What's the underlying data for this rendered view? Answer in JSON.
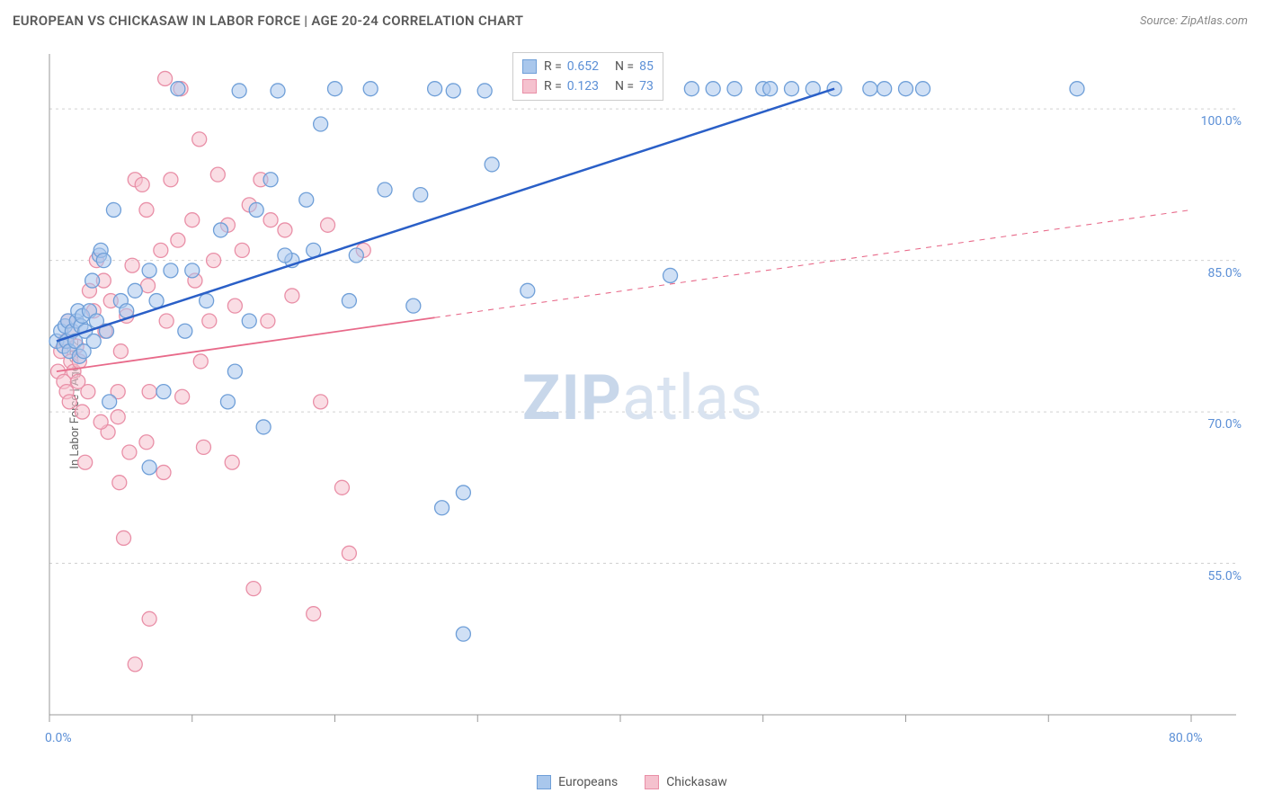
{
  "title": "EUROPEAN VS CHICKASAW IN LABOR FORCE | AGE 20-24 CORRELATION CHART",
  "source": "Source: ZipAtlas.com",
  "ylabel": "In Labor Force | Age 20-24",
  "watermark_bold": "ZIP",
  "watermark_light": "atlas",
  "chart": {
    "type": "scatter",
    "xlim": [
      0,
      80
    ],
    "ylim": [
      40,
      105
    ],
    "xticks": [
      0,
      20,
      40,
      60,
      80
    ],
    "xtick_labels": [
      "0.0%",
      "",
      "",
      "",
      "80.0%"
    ],
    "xtick_minor": [
      10,
      30,
      50,
      70
    ],
    "yticks": [
      55,
      70,
      85,
      100
    ],
    "ytick_labels": [
      "55.0%",
      "70.0%",
      "85.0%",
      "100.0%"
    ],
    "grid_color": "#d0d0d0",
    "axis_color": "#999999",
    "background_color": "#ffffff",
    "series": [
      {
        "name": "Europeans",
        "color_fill": "#a9c7ec",
        "color_stroke": "#6f9fd8",
        "line_color": "#2a5fc7",
        "R": "0.652",
        "N": "85",
        "marker_radius": 8,
        "fill_opacity": 0.55,
        "line": {
          "x1": 0.5,
          "y1": 77,
          "x2": 55,
          "y2": 102,
          "solid_until_x": 55,
          "width": 2.5
        },
        "points": [
          [
            0.5,
            77
          ],
          [
            0.8,
            78
          ],
          [
            1.0,
            76.5
          ],
          [
            1.1,
            78.5
          ],
          [
            1.2,
            77
          ],
          [
            1.3,
            79
          ],
          [
            1.4,
            76
          ],
          [
            1.6,
            78
          ],
          [
            1.8,
            77
          ],
          [
            1.9,
            79
          ],
          [
            2.0,
            80
          ],
          [
            2.1,
            75.5
          ],
          [
            2.2,
            78.5
          ],
          [
            2.3,
            79.5
          ],
          [
            2.4,
            76
          ],
          [
            2.5,
            78
          ],
          [
            2.8,
            80
          ],
          [
            3.0,
            83
          ],
          [
            3.1,
            77
          ],
          [
            3.3,
            79
          ],
          [
            3.5,
            85.5
          ],
          [
            3.6,
            86
          ],
          [
            3.8,
            85
          ],
          [
            4.0,
            78
          ],
          [
            4.2,
            71
          ],
          [
            4.5,
            90
          ],
          [
            5.0,
            81
          ],
          [
            5.4,
            80
          ],
          [
            6.0,
            82
          ],
          [
            7.0,
            84
          ],
          [
            7.0,
            64.5
          ],
          [
            7.5,
            81
          ],
          [
            8.0,
            72
          ],
          [
            8.5,
            84
          ],
          [
            9.0,
            102
          ],
          [
            9.5,
            78
          ],
          [
            10,
            84
          ],
          [
            11,
            81
          ],
          [
            12,
            88
          ],
          [
            12.5,
            71
          ],
          [
            13,
            74
          ],
          [
            13.3,
            101.8
          ],
          [
            14,
            79
          ],
          [
            14.5,
            90
          ],
          [
            15,
            68.5
          ],
          [
            15.5,
            93
          ],
          [
            16,
            101.8
          ],
          [
            17,
            85
          ],
          [
            18,
            91
          ],
          [
            18.5,
            86
          ],
          [
            16.5,
            85.5
          ],
          [
            19,
            98.5
          ],
          [
            20,
            102
          ],
          [
            21,
            81
          ],
          [
            21.5,
            85.5
          ],
          [
            22.5,
            102
          ],
          [
            23.5,
            92
          ],
          [
            25.5,
            80.5
          ],
          [
            26,
            91.5
          ],
          [
            27,
            102
          ],
          [
            27.5,
            60.5
          ],
          [
            28.3,
            101.8
          ],
          [
            29,
            62
          ],
          [
            29,
            48
          ],
          [
            30.5,
            101.8
          ],
          [
            31,
            94.5
          ],
          [
            33,
            102
          ],
          [
            33.5,
            82
          ],
          [
            38.5,
            102
          ],
          [
            40,
            102
          ],
          [
            42,
            102
          ],
          [
            43.5,
            83.5
          ],
          [
            45,
            102
          ],
          [
            46.5,
            102
          ],
          [
            48,
            102
          ],
          [
            50,
            102
          ],
          [
            50.5,
            102
          ],
          [
            52,
            102
          ],
          [
            53.5,
            102
          ],
          [
            55,
            102
          ],
          [
            57.5,
            102
          ],
          [
            58.5,
            102
          ],
          [
            60,
            102
          ],
          [
            61.2,
            102
          ],
          [
            72,
            102
          ]
        ]
      },
      {
        "name": "Chickasaw",
        "color_fill": "#f5c1ce",
        "color_stroke": "#e98fa7",
        "line_color": "#e86a8a",
        "R": "0.123",
        "N": "73",
        "marker_radius": 8,
        "fill_opacity": 0.55,
        "line": {
          "x1": 0.5,
          "y1": 74,
          "x2": 80,
          "y2": 90,
          "solid_until_x": 27,
          "width": 1.8
        },
        "points": [
          [
            0.6,
            74
          ],
          [
            0.8,
            76
          ],
          [
            1.0,
            73
          ],
          [
            1.1,
            77
          ],
          [
            1.2,
            72
          ],
          [
            1.3,
            79
          ],
          [
            1.4,
            71
          ],
          [
            1.5,
            75
          ],
          [
            1.6,
            78
          ],
          [
            1.7,
            74
          ],
          [
            1.9,
            76.5
          ],
          [
            2.0,
            73
          ],
          [
            2.1,
            75
          ],
          [
            2.3,
            70
          ],
          [
            2.5,
            65
          ],
          [
            2.8,
            82
          ],
          [
            3.1,
            80
          ],
          [
            3.3,
            85
          ],
          [
            3.8,
            83
          ],
          [
            3.9,
            78
          ],
          [
            4.1,
            68
          ],
          [
            4.3,
            81
          ],
          [
            4.8,
            72
          ],
          [
            5.4,
            79.5
          ],
          [
            5.6,
            66
          ],
          [
            5.8,
            84.5
          ],
          [
            6.0,
            93
          ],
          [
            6.5,
            92.5
          ],
          [
            6.9,
            82.5
          ],
          [
            7.0,
            72
          ],
          [
            4.9,
            63
          ],
          [
            5.2,
            57.5
          ],
          [
            6.0,
            45
          ],
          [
            7.0,
            49.5
          ],
          [
            6.8,
            67
          ],
          [
            8.0,
            64
          ],
          [
            8.1,
            103
          ],
          [
            8.5,
            93
          ],
          [
            9.2,
            102
          ],
          [
            9.3,
            71.5
          ],
          [
            10,
            89
          ],
          [
            10.5,
            97
          ],
          [
            10.8,
            66.5
          ],
          [
            11.2,
            79
          ],
          [
            11.5,
            85
          ],
          [
            12.5,
            88.5
          ],
          [
            12.8,
            65
          ],
          [
            13,
            80.5
          ],
          [
            13.5,
            86
          ],
          [
            14,
            90.5
          ],
          [
            14.3,
            52.5
          ],
          [
            15.3,
            79
          ],
          [
            15.5,
            89
          ],
          [
            16.5,
            88
          ],
          [
            18.5,
            50
          ],
          [
            19,
            71
          ],
          [
            19.5,
            88.5
          ],
          [
            20.5,
            62.5
          ],
          [
            21,
            56
          ],
          [
            22,
            86
          ],
          [
            14.8,
            93
          ],
          [
            9.0,
            87
          ],
          [
            10.2,
            83
          ],
          [
            6.8,
            90
          ],
          [
            2.7,
            72
          ],
          [
            3.6,
            69
          ],
          [
            4.8,
            69.5
          ],
          [
            5.0,
            76
          ],
          [
            8.2,
            79
          ],
          [
            10.6,
            75
          ],
          [
            17,
            81.5
          ],
          [
            11.8,
            93.5
          ],
          [
            7.8,
            86
          ]
        ]
      }
    ],
    "legend_bottom": [
      {
        "label": "Europeans",
        "fill": "#a9c7ec",
        "stroke": "#6f9fd8"
      },
      {
        "label": "Chickasaw",
        "fill": "#f5c1ce",
        "stroke": "#e98fa7"
      }
    ]
  }
}
